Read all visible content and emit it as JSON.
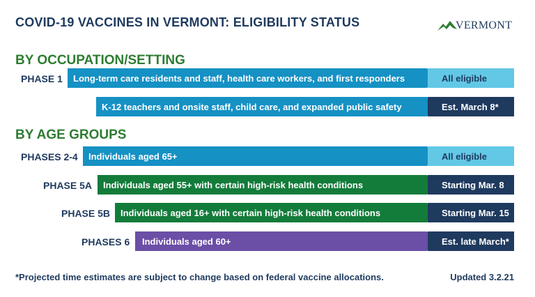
{
  "title": "COVID-19 VACCINES IN VERMONT:  ELIGIBILITY STATUS",
  "logo": {
    "text": "VERMONT",
    "icon": "vermont-mountain-logo",
    "color": "#2e7d32"
  },
  "sections": {
    "occupation": "BY OCCUPATION/SETTING",
    "age": "BY AGE GROUPS"
  },
  "rows": [
    {
      "phase": "PHASE 1",
      "label": "Long-term care residents and staff, health care workers, and first responders",
      "status": "All eligible",
      "color": "#1591c4"
    },
    {
      "phase": "",
      "label": "K-12 teachers and onsite staff, child care, and expanded public safety",
      "status": "Est. March 8*",
      "color": "#1591c4"
    },
    {
      "phase": "PHASES 2-4",
      "label": "Individuals aged 65+",
      "status": "All eligible",
      "color": "#1591c4"
    },
    {
      "phase": "PHASE 5A",
      "label": "Individuals aged 55+ with certain high-risk health conditions",
      "status": "Starting Mar. 8",
      "color": "#137c3a"
    },
    {
      "phase": "PHASE 5B",
      "label": "Individuals aged 16+ with certain high-risk health conditions",
      "status": "Starting Mar. 15",
      "color": "#137c3a"
    },
    {
      "phase": "PHASES 6",
      "label": "Individuals aged 60+",
      "status": "Est. late March*",
      "color": "#6b4ea6"
    }
  ],
  "footnote": "*Projected time estimates are subject to change based on federal vaccine allocations.",
  "updated": "Updated 3.2.21"
}
